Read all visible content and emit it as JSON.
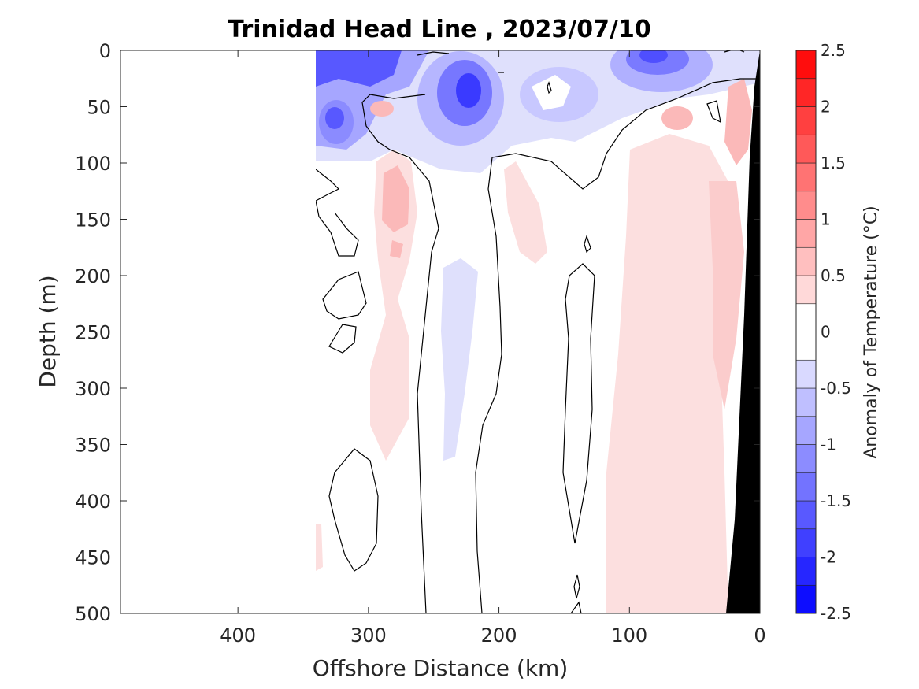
{
  "chart_data": {
    "type": "heatmap",
    "title": "Trinidad Head Line , 2023/07/10",
    "xlabel": "Offshore Distance (km)",
    "ylabel": "Depth (m)",
    "xlim": [
      490,
      0
    ],
    "ylim": [
      0,
      500
    ],
    "x_reversed": true,
    "y_reversed": true,
    "xticks": [
      400,
      300,
      200,
      100,
      0
    ],
    "yticks": [
      0,
      50,
      100,
      150,
      200,
      250,
      300,
      350,
      400,
      450,
      500
    ],
    "data_x_range": [
      340,
      0
    ],
    "colorbar": {
      "label": "Anomaly of Temperature (°C)",
      "range": [
        -2.5,
        2.5
      ],
      "step": 0.25,
      "ticks": [
        2.5,
        2,
        1.5,
        1,
        0.5,
        0,
        -0.5,
        -1,
        -1.5,
        -2,
        -2.5
      ],
      "positive_color": "#ff0000",
      "negative_color": "#0000ff",
      "neutral_color": "#ffffff"
    },
    "bathymetry_color": "#000000",
    "features": [
      {
        "type": "negative",
        "x": 300,
        "depth": 10,
        "value": -1.75
      },
      {
        "type": "negative",
        "x": 325,
        "depth": 60,
        "value": -1.25
      },
      {
        "type": "negative",
        "x": 230,
        "depth": 40,
        "value": -1.75
      },
      {
        "type": "negative",
        "x": 80,
        "depth": 10,
        "value": -1.25
      },
      {
        "type": "negative",
        "x": 220,
        "depth": 280,
        "value": -0.25
      },
      {
        "type": "positive",
        "x": 280,
        "depth": 150,
        "value": 0.75
      },
      {
        "type": "positive",
        "x": 20,
        "depth": 200,
        "value": 0.75
      },
      {
        "type": "positive",
        "x": 60,
        "depth": 50,
        "value": 0.5
      },
      {
        "type": "positive",
        "x": 100,
        "depth": 300,
        "value": 0.25
      }
    ]
  }
}
